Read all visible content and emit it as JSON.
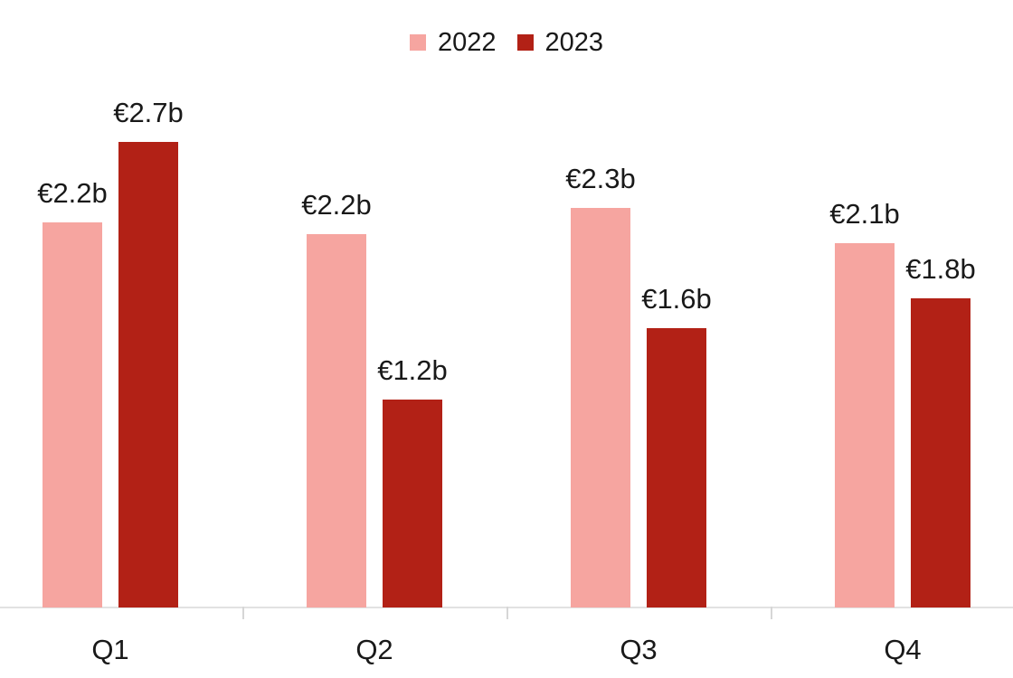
{
  "legend": {
    "items": [
      {
        "label": "2022",
        "color": "#f6a5a0"
      },
      {
        "label": "2023",
        "color": "#b22116"
      }
    ]
  },
  "chart_data": {
    "type": "bar",
    "title": "",
    "xlabel": "",
    "ylabel": "",
    "categories": [
      "Q1",
      "Q2",
      "Q3",
      "Q4"
    ],
    "series": [
      {
        "name": "2022",
        "color": "#f6a5a0",
        "values": [
          2.2,
          2.2,
          2.3,
          2.1
        ],
        "values_precise": [
          2.22,
          2.15,
          2.3,
          2.1
        ],
        "labels": [
          "€2.2b",
          "€2.2b",
          "€2.3b",
          "€2.1b"
        ]
      },
      {
        "name": "2023",
        "color": "#b22116",
        "values": [
          2.7,
          1.2,
          1.6,
          1.8
        ],
        "values_precise": [
          2.68,
          1.2,
          1.61,
          1.78
        ],
        "labels": [
          "€2.7b",
          "€1.2b",
          "€1.6b",
          "€1.8b"
        ]
      }
    ],
    "ylim": [
      0,
      3.1
    ],
    "grid": false,
    "y_axis_visible": false,
    "legend_position": "top",
    "value_labels_visible": true
  }
}
